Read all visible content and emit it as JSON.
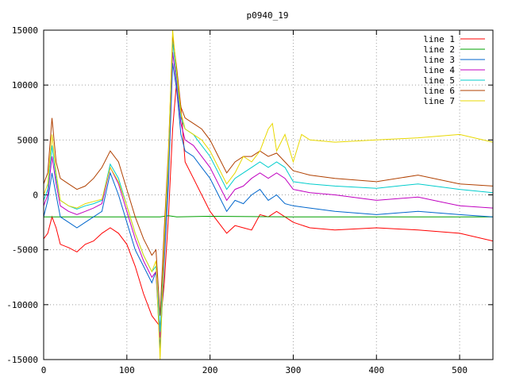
{
  "chart_data": {
    "type": "line",
    "title": "p0940_19",
    "xlabel": "",
    "ylabel": "",
    "xlim": [
      0,
      540
    ],
    "ylim": [
      -15000,
      15000
    ],
    "xticks": [
      0,
      100,
      200,
      300,
      400,
      500
    ],
    "yticks": [
      -15000,
      -10000,
      -5000,
      0,
      5000,
      10000,
      15000
    ],
    "grid": true,
    "legend_position": "top-right",
    "series": [
      {
        "name": "line 1",
        "color": "#ff0000",
        "x": [
          0,
          5,
          10,
          15,
          20,
          30,
          40,
          50,
          60,
          70,
          80,
          90,
          100,
          110,
          120,
          130,
          135,
          140,
          145,
          150,
          155,
          160,
          165,
          170,
          180,
          190,
          200,
          210,
          220,
          230,
          240,
          250,
          260,
          270,
          280,
          290,
          300,
          320,
          350,
          400,
          450,
          500,
          540
        ],
        "y": [
          -4000,
          -3500,
          -2000,
          -3000,
          -4500,
          -4800,
          -5200,
          -4500,
          -4200,
          -3500,
          -3000,
          -3500,
          -4500,
          -6500,
          -9000,
          -11000,
          -11500,
          -12000,
          -8000,
          -2000,
          6000,
          10500,
          8000,
          3000,
          1500,
          0,
          -1500,
          -2500,
          -3500,
          -2800,
          -3000,
          -3200,
          -1800,
          -2000,
          -1500,
          -2000,
          -2500,
          -3000,
          -3200,
          -3000,
          -3200,
          -3500,
          -4200
        ]
      },
      {
        "name": "line 2",
        "color": "#00a000",
        "x": [
          0,
          100,
          140,
          150,
          160,
          200,
          300,
          400,
          540
        ],
        "y": [
          -2000,
          -2000,
          -2000,
          -1900,
          -2000,
          -1950,
          -2000,
          -2000,
          -2000
        ]
      },
      {
        "name": "line 3",
        "color": "#0066cc",
        "x": [
          0,
          5,
          10,
          15,
          20,
          30,
          40,
          50,
          60,
          70,
          80,
          90,
          100,
          110,
          120,
          130,
          135,
          140,
          145,
          150,
          155,
          160,
          165,
          170,
          180,
          190,
          200,
          210,
          220,
          230,
          240,
          250,
          260,
          270,
          280,
          290,
          300,
          320,
          350,
          400,
          450,
          500,
          540
        ],
        "y": [
          -2000,
          -500,
          2000,
          0,
          -2000,
          -2500,
          -3000,
          -2500,
          -2000,
          -1500,
          2000,
          0,
          -2500,
          -5000,
          -6500,
          -8000,
          -7000,
          -14000,
          -6000,
          1000,
          12000,
          9500,
          5500,
          4000,
          3500,
          2500,
          1500,
          0,
          -1500,
          -500,
          -800,
          0,
          500,
          -500,
          0,
          -800,
          -1000,
          -1200,
          -1500,
          -1800,
          -1500,
          -1800,
          -2000
        ]
      },
      {
        "name": "line 4",
        "color": "#c000c0",
        "x": [
          0,
          5,
          10,
          15,
          20,
          30,
          40,
          50,
          60,
          70,
          80,
          90,
          100,
          110,
          120,
          130,
          135,
          140,
          145,
          150,
          155,
          160,
          165,
          170,
          180,
          190,
          200,
          210,
          220,
          230,
          240,
          250,
          260,
          270,
          280,
          290,
          300,
          320,
          350,
          400,
          450,
          500,
          540
        ],
        "y": [
          -1000,
          0,
          3500,
          1000,
          -1000,
          -1500,
          -1800,
          -1500,
          -1200,
          -800,
          2500,
          1000,
          -1500,
          -4000,
          -6000,
          -7500,
          -7000,
          -13000,
          -5000,
          2000,
          13000,
          10000,
          6500,
          5000,
          4500,
          3500,
          2500,
          1000,
          -500,
          500,
          800,
          1500,
          2000,
          1500,
          2000,
          1500,
          500,
          200,
          0,
          -500,
          -200,
          -1000,
          -1200
        ]
      },
      {
        "name": "line 5",
        "color": "#00cccc",
        "x": [
          0,
          5,
          10,
          15,
          20,
          30,
          40,
          50,
          60,
          70,
          80,
          90,
          100,
          110,
          120,
          130,
          135,
          140,
          145,
          150,
          155,
          160,
          165,
          170,
          180,
          190,
          200,
          210,
          220,
          230,
          240,
          250,
          260,
          270,
          280,
          290,
          300,
          320,
          350,
          400,
          450,
          500,
          540
        ],
        "y": [
          -500,
          500,
          4500,
          1500,
          -500,
          -1000,
          -1300,
          -1000,
          -800,
          -500,
          2800,
          1500,
          -1000,
          -3500,
          -5500,
          -7000,
          -6500,
          -12500,
          -4500,
          2500,
          14000,
          10500,
          7000,
          6000,
          5500,
          4500,
          3500,
          2000,
          500,
          1500,
          2000,
          2500,
          3000,
          2500,
          3000,
          2500,
          1200,
          1000,
          800,
          600,
          1000,
          500,
          200
        ]
      },
      {
        "name": "line 6",
        "color": "#b04000",
        "x": [
          0,
          5,
          10,
          15,
          20,
          30,
          40,
          50,
          60,
          70,
          80,
          90,
          100,
          110,
          120,
          130,
          135,
          140,
          145,
          150,
          155,
          160,
          165,
          170,
          180,
          190,
          200,
          210,
          220,
          230,
          240,
          250,
          260,
          270,
          280,
          290,
          300,
          320,
          350,
          400,
          450,
          500,
          540
        ],
        "y": [
          1000,
          2000,
          7000,
          3000,
          1500,
          1000,
          500,
          800,
          1500,
          2500,
          4000,
          3000,
          500,
          -2000,
          -4000,
          -5500,
          -5000,
          -11000,
          -3000,
          4000,
          14500,
          11500,
          8000,
          7000,
          6500,
          6000,
          5000,
          3500,
          2000,
          3000,
          3500,
          3500,
          4000,
          3500,
          3800,
          3000,
          2200,
          1800,
          1500,
          1200,
          1800,
          1000,
          800
        ]
      },
      {
        "name": "line 7",
        "color": "#e8d800",
        "x": [
          0,
          5,
          10,
          15,
          20,
          30,
          40,
          50,
          60,
          70,
          80,
          90,
          100,
          110,
          120,
          130,
          135,
          140,
          145,
          150,
          155,
          160,
          165,
          170,
          180,
          190,
          200,
          210,
          220,
          230,
          240,
          250,
          260,
          270,
          275,
          280,
          290,
          300,
          310,
          320,
          350,
          400,
          450,
          500,
          540
        ],
        "y": [
          0,
          1000,
          5500,
          2000,
          -500,
          -1000,
          -1200,
          -800,
          -600,
          -400,
          2500,
          1200,
          -1000,
          -3500,
          -5500,
          -7000,
          -6000,
          -15000,
          -4000,
          3500,
          15000,
          11000,
          7500,
          6000,
          5500,
          5000,
          4000,
          2500,
          1000,
          2000,
          3500,
          3000,
          4000,
          6000,
          6500,
          4000,
          5500,
          3000,
          5500,
          5000,
          4800,
          5000,
          5200,
          5500,
          4800
        ]
      }
    ]
  }
}
